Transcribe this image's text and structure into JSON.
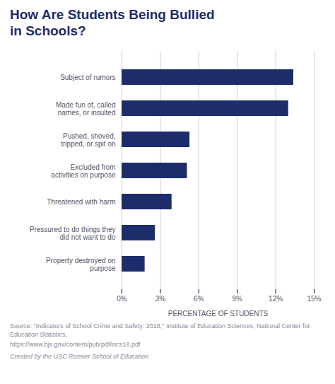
{
  "chart_data": {
    "type": "bar",
    "orientation": "horizontal",
    "title": "How Are Students Being Bullied\nin Schools?",
    "categories": [
      "Property destroyed on\npurpose",
      "Pressured to do things they\ndid not want to do",
      "Threatened with harm",
      "Excluded from\nactivities on purpose",
      "Pushed, shoved,\ntripped, or spit on",
      "Made fun of, called\nnames, or insulted",
      "Subject of rumors"
    ],
    "values": [
      1.8,
      2.6,
      3.9,
      5.1,
      5.3,
      13.0,
      13.4
    ],
    "color": "#1d2d6b",
    "xlabel": "PERCENTAGE OF STUDENTS",
    "xlim": [
      0,
      15
    ],
    "xticks": [
      {
        "value": 0,
        "label": "0%"
      },
      {
        "value": 3,
        "label": "3%"
      },
      {
        "value": 6,
        "label": "6%"
      },
      {
        "value": 9,
        "label": "9%"
      },
      {
        "value": 12,
        "label": "12%"
      },
      {
        "value": 15,
        "label": "15%"
      }
    ],
    "grid": true,
    "annotations": [
      "Source: \"Indicators of School Crime and Safety: 2018,\" Institute of Education Sciences, National Center for Education Statistics,",
      "https://www.bjs.gov/content/pub/pdf/iscs18.pdf",
      "Created by the USC Rossier School of Education"
    ]
  }
}
